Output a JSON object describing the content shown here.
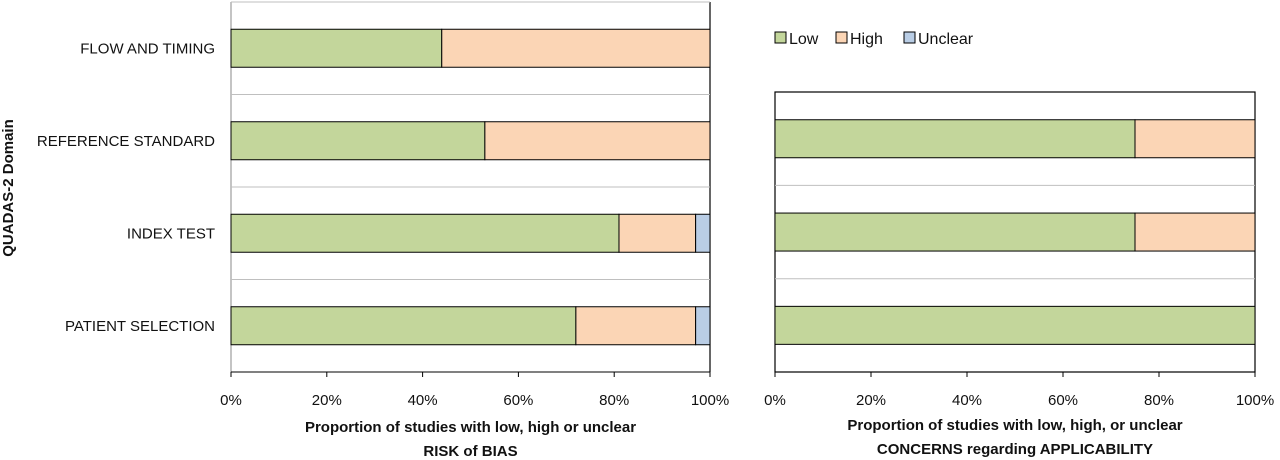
{
  "colors": {
    "Low": "#c3d69b",
    "High": "#fbd5b5",
    "Unclear": "#b9cde5",
    "gridline": "#bfbfbf",
    "frame": "#000000"
  },
  "legend": {
    "items": [
      {
        "name": "Low",
        "color_key": "Low"
      },
      {
        "name": "High",
        "color_key": "High"
      },
      {
        "name": "Unclear",
        "color_key": "Unclear"
      }
    ]
  },
  "chart_data": [
    {
      "type": "bar",
      "orientation": "horizontal",
      "stacked": true,
      "ylabel": "QUADAS-2 Domain",
      "xlabel_line1": "Proportion of studies with low, high or unclear",
      "xlabel_line2": "RISK of BIAS",
      "categories": [
        "PATIENT SELECTION",
        "INDEX TEST",
        "REFERENCE STANDARD",
        "FLOW AND TIMING"
      ],
      "series": [
        {
          "name": "Low",
          "values": [
            0.72,
            0.81,
            0.53,
            0.44
          ]
        },
        {
          "name": "High",
          "values": [
            0.25,
            0.16,
            0.47,
            0.56
          ]
        },
        {
          "name": "Unclear",
          "values": [
            0.03,
            0.03,
            0.0,
            0.0
          ]
        }
      ],
      "xticks": [
        "0%",
        "20%",
        "40%",
        "60%",
        "80%",
        "100%"
      ],
      "xlim": [
        0,
        1
      ],
      "grid": true
    },
    {
      "type": "bar",
      "orientation": "horizontal",
      "stacked": true,
      "xlabel_line1": "Proportion of studies with low, high, or unclear",
      "xlabel_line2": "CONCERNS regarding APPLICABILITY",
      "categories": [
        "PATIENT SELECTION",
        "INDEX TEST",
        "REFERENCE STANDARD"
      ],
      "series": [
        {
          "name": "Low",
          "values": [
            1.0,
            0.75,
            0.75
          ]
        },
        {
          "name": "High",
          "values": [
            0.0,
            0.25,
            0.25
          ]
        },
        {
          "name": "Unclear",
          "values": [
            0.0,
            0.0,
            0.0
          ]
        }
      ],
      "xticks": [
        "0%",
        "20%",
        "40%",
        "60%",
        "80%",
        "100%"
      ],
      "xlim": [
        0,
        1
      ],
      "grid": true,
      "legend_position": "top-left"
    }
  ]
}
